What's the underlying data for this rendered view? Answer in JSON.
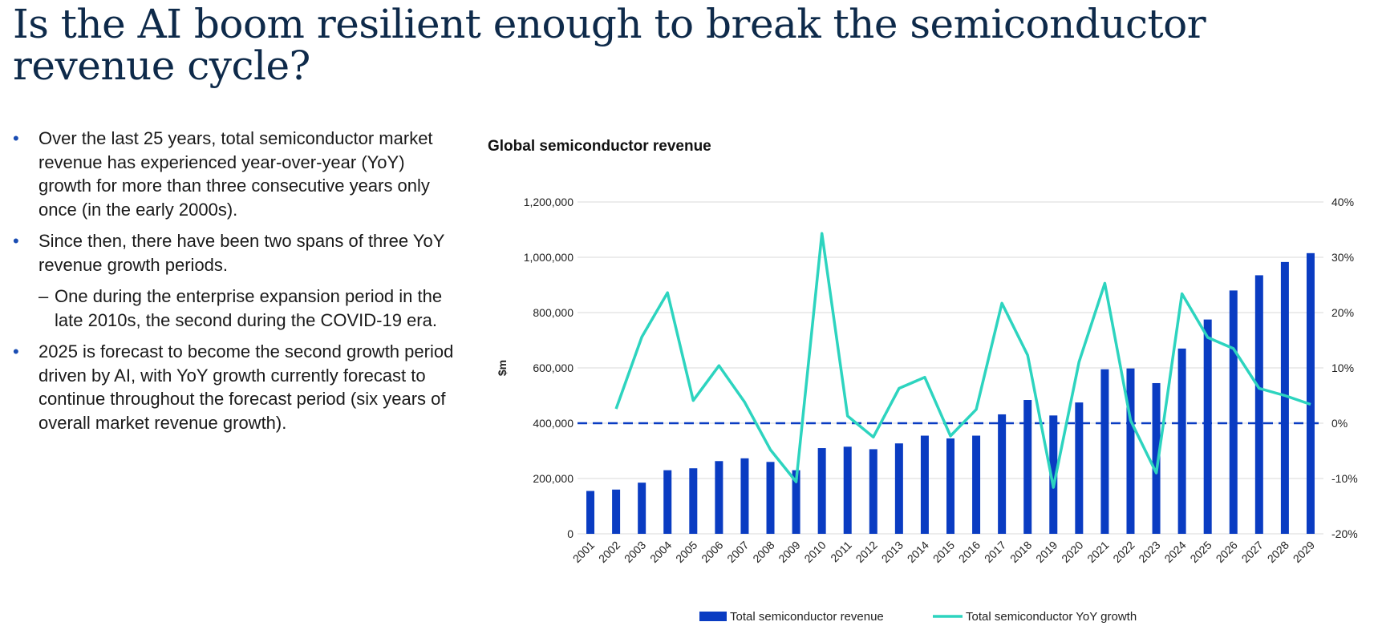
{
  "page": {
    "title": "Is the AI boom resilient enough to break the semiconductor revenue cycle?",
    "bullets": [
      "Over the last 25 years, total semiconductor market revenue has experienced year-over-year (YoY) growth for more than three consecutive years only once (in the early 2000s).",
      "Since then, there have been two spans of three YoY revenue growth periods.",
      "One during the enterprise expansion period in the late 2010s, the second during the COVID-19 era.",
      "2025 is forecast to become the second growth period driven by AI, with YoY growth currently forecast to continue throughout the forecast period (six years of overall market revenue growth)."
    ],
    "bullet_symbol": "•",
    "sub_symbol": "–"
  },
  "chart_data": {
    "type": "bar",
    "title": "Global semiconductor revenue",
    "ylabel": "$m",
    "y2label": "",
    "ylim": [
      0,
      1200000
    ],
    "y2lim": [
      -20,
      40
    ],
    "yticks": [
      "0",
      "200,000",
      "400,000",
      "600,000",
      "800,000",
      "1,000,000",
      "1,200,000"
    ],
    "y2ticks": [
      "-20%",
      "-10%",
      "0%",
      "10%",
      "20%",
      "30%",
      "40%"
    ],
    "categories": [
      "2001",
      "2002",
      "2003",
      "2004",
      "2005",
      "2006",
      "2007",
      "2008",
      "2009",
      "2010",
      "2011",
      "2012",
      "2013",
      "2014",
      "2015",
      "2016",
      "2017",
      "2018",
      "2019",
      "2020",
      "2021",
      "2022",
      "2023",
      "2024",
      "2025",
      "2026",
      "2027",
      "2028",
      "2029"
    ],
    "series": [
      {
        "name": "Total semiconductor revenue",
        "type": "bar",
        "axis": "left",
        "color": "#0a3cc2",
        "values": [
          155000,
          160000,
          185000,
          230000,
          237000,
          263000,
          273000,
          260000,
          230000,
          310000,
          315000,
          306000,
          327000,
          355000,
          345000,
          355000,
          432000,
          484000,
          428000,
          475000,
          595000,
          598000,
          545000,
          670000,
          775000,
          880000,
          935000,
          983000,
          1015000
        ]
      },
      {
        "name": "Total semiconductor YoY growth",
        "type": "line",
        "axis": "right",
        "color": "#2dd4bf",
        "values": [
          null,
          2.6,
          15.6,
          23.6,
          4.1,
          10.4,
          3.8,
          -4.8,
          -10.6,
          34.3,
          1.3,
          -2.5,
          6.3,
          8.3,
          -2.3,
          2.5,
          21.7,
          12.3,
          -11.6,
          11.1,
          25.3,
          0.5,
          -9.0,
          23.4,
          15.5,
          13.5,
          6.3,
          5.0,
          3.4
        ]
      }
    ],
    "zero_line": {
      "axis": "right",
      "value": 0,
      "color": "#0a3cc2",
      "style": "dashed"
    },
    "grid": true,
    "legend": "bottom"
  }
}
